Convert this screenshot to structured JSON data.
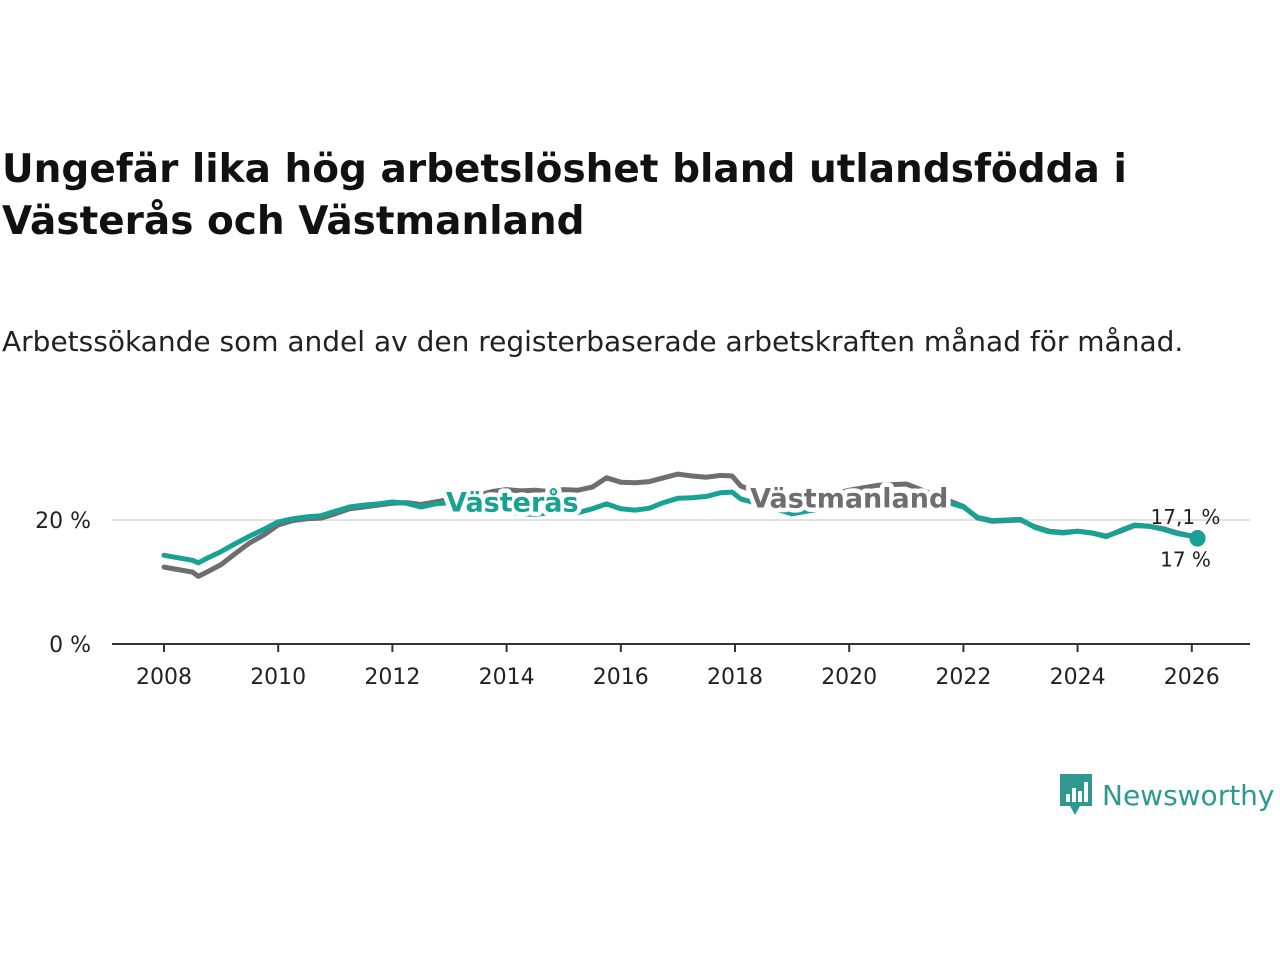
{
  "title": "Ungefär lika hög arbetslöshet bland utlandsfödda i Västerås och Västmanland",
  "subtitle": "Arbetssökande som andel av den registerbaserade arbetskraften månad för månad.",
  "brand": {
    "name": "Newsworthy",
    "color": "#2e9a8f"
  },
  "chart_data": {
    "type": "line",
    "ylim": [
      0,
      30
    ],
    "xlim": [
      2007.8,
      2027
    ],
    "yticks": [
      {
        "value": 0,
        "label": "0 %"
      },
      {
        "value": 20,
        "label": "20 %"
      }
    ],
    "xticks": [
      {
        "value": 2008,
        "label": "2008"
      },
      {
        "value": 2010,
        "label": "2010"
      },
      {
        "value": 2012,
        "label": "2012"
      },
      {
        "value": 2014,
        "label": "2014"
      },
      {
        "value": 2016,
        "label": "2016"
      },
      {
        "value": 2018,
        "label": "2018"
      },
      {
        "value": 2020,
        "label": "2020"
      },
      {
        "value": 2022,
        "label": "2022"
      },
      {
        "value": 2024,
        "label": "2024"
      },
      {
        "value": 2026,
        "label": "2026"
      }
    ],
    "grid_lines_at": [
      20
    ],
    "series": [
      {
        "name": "Västmanland",
        "color": "#6e6e72",
        "end_label": "17,1 %",
        "points": [
          [
            2008.0,
            12.4
          ],
          [
            2008.25,
            12.0
          ],
          [
            2008.5,
            11.6
          ],
          [
            2008.6,
            10.9
          ],
          [
            2008.75,
            11.6
          ],
          [
            2009.0,
            12.8
          ],
          [
            2009.25,
            14.6
          ],
          [
            2009.5,
            16.3
          ],
          [
            2009.75,
            17.6
          ],
          [
            2010.0,
            19.2
          ],
          [
            2010.25,
            19.9
          ],
          [
            2010.5,
            20.2
          ],
          [
            2010.75,
            20.3
          ],
          [
            2011.0,
            21.0
          ],
          [
            2011.25,
            21.8
          ],
          [
            2011.5,
            22.1
          ],
          [
            2011.75,
            22.4
          ],
          [
            2012.0,
            22.7
          ],
          [
            2012.25,
            22.8
          ],
          [
            2012.5,
            22.5
          ],
          [
            2012.75,
            22.9
          ],
          [
            2013.0,
            23.3
          ],
          [
            2013.25,
            23.6
          ],
          [
            2013.5,
            24.0
          ],
          [
            2013.75,
            24.6
          ],
          [
            2014.0,
            24.9
          ],
          [
            2014.25,
            24.7
          ],
          [
            2014.5,
            24.8
          ],
          [
            2014.75,
            24.6
          ],
          [
            2015.0,
            24.9
          ],
          [
            2015.25,
            24.8
          ],
          [
            2015.5,
            25.3
          ],
          [
            2015.75,
            26.8
          ],
          [
            2016.0,
            26.1
          ],
          [
            2016.25,
            26.0
          ],
          [
            2016.5,
            26.2
          ],
          [
            2016.75,
            26.8
          ],
          [
            2017.0,
            27.4
          ],
          [
            2017.25,
            27.1
          ],
          [
            2017.5,
            26.9
          ],
          [
            2017.75,
            27.2
          ],
          [
            2017.95,
            27.1
          ],
          [
            2018.1,
            25.5
          ],
          [
            2018.5,
            24.0
          ],
          [
            2019.0,
            23.0
          ],
          [
            2019.5,
            23.6
          ],
          [
            2020.0,
            24.8
          ],
          [
            2020.5,
            25.6
          ],
          [
            2021.0,
            25.8
          ],
          [
            2021.5,
            24.0
          ],
          [
            2022.0,
            22.2
          ],
          [
            2022.25,
            20.3
          ],
          [
            2022.5,
            19.8
          ],
          [
            2022.75,
            19.9
          ],
          [
            2023.0,
            20.0
          ],
          [
            2023.25,
            18.9
          ],
          [
            2023.5,
            18.2
          ],
          [
            2023.75,
            18.0
          ],
          [
            2024.0,
            18.2
          ],
          [
            2024.25,
            17.9
          ],
          [
            2024.5,
            17.4
          ],
          [
            2024.75,
            18.2
          ],
          [
            2025.0,
            19.1
          ],
          [
            2025.25,
            19.0
          ],
          [
            2025.5,
            18.6
          ],
          [
            2025.75,
            17.9
          ],
          [
            2026.0,
            17.4
          ],
          [
            2026.1,
            17.1
          ]
        ]
      },
      {
        "name": "Västerås",
        "color": "#17a293",
        "end_label": "17 %",
        "points": [
          [
            2008.0,
            14.3
          ],
          [
            2008.25,
            13.9
          ],
          [
            2008.5,
            13.5
          ],
          [
            2008.6,
            13.1
          ],
          [
            2008.75,
            13.8
          ],
          [
            2009.0,
            14.9
          ],
          [
            2009.25,
            16.2
          ],
          [
            2009.5,
            17.4
          ],
          [
            2009.75,
            18.5
          ],
          [
            2010.0,
            19.7
          ],
          [
            2010.25,
            20.2
          ],
          [
            2010.5,
            20.5
          ],
          [
            2010.75,
            20.7
          ],
          [
            2011.0,
            21.4
          ],
          [
            2011.25,
            22.1
          ],
          [
            2011.5,
            22.4
          ],
          [
            2011.75,
            22.6
          ],
          [
            2012.0,
            22.9
          ],
          [
            2012.25,
            22.7
          ],
          [
            2012.5,
            22.1
          ],
          [
            2012.75,
            22.6
          ],
          [
            2013.0,
            22.8
          ],
          [
            2013.25,
            22.7
          ],
          [
            2013.5,
            22.4
          ],
          [
            2013.75,
            21.8
          ],
          [
            2014.0,
            21.4
          ],
          [
            2014.25,
            21.0
          ],
          [
            2014.5,
            20.9
          ],
          [
            2014.75,
            21.2
          ],
          [
            2015.0,
            21.4
          ],
          [
            2015.25,
            21.2
          ],
          [
            2015.5,
            21.8
          ],
          [
            2015.75,
            22.6
          ],
          [
            2016.0,
            21.8
          ],
          [
            2016.25,
            21.6
          ],
          [
            2016.5,
            21.9
          ],
          [
            2016.75,
            22.8
          ],
          [
            2017.0,
            23.5
          ],
          [
            2017.25,
            23.6
          ],
          [
            2017.5,
            23.8
          ],
          [
            2017.75,
            24.4
          ],
          [
            2017.95,
            24.5
          ],
          [
            2018.1,
            23.4
          ],
          [
            2018.5,
            22.4
          ],
          [
            2019.0,
            21.0
          ],
          [
            2019.5,
            21.8
          ],
          [
            2020.0,
            22.9
          ],
          [
            2020.5,
            23.8
          ],
          [
            2021.0,
            24.2
          ],
          [
            2021.5,
            23.4
          ],
          [
            2022.0,
            22.1
          ],
          [
            2022.25,
            20.4
          ],
          [
            2022.5,
            19.9
          ],
          [
            2022.75,
            20.0
          ],
          [
            2023.0,
            20.1
          ],
          [
            2023.25,
            18.8
          ],
          [
            2023.5,
            18.1
          ],
          [
            2023.75,
            17.9
          ],
          [
            2024.0,
            18.2
          ],
          [
            2024.25,
            17.9
          ],
          [
            2024.5,
            17.3
          ],
          [
            2024.75,
            18.3
          ],
          [
            2025.0,
            19.2
          ],
          [
            2025.25,
            19.0
          ],
          [
            2025.5,
            18.5
          ],
          [
            2025.75,
            17.8
          ],
          [
            2026.0,
            17.4
          ],
          [
            2026.1,
            17.0
          ]
        ]
      }
    ],
    "inline_labels": [
      {
        "series": "Västerås",
        "text": "Västerås",
        "x": 2014.1,
        "y": 23.0
      },
      {
        "series": "Västmanland",
        "text": "Västmanland",
        "x": 2020.0,
        "y": 23.6
      }
    ]
  }
}
